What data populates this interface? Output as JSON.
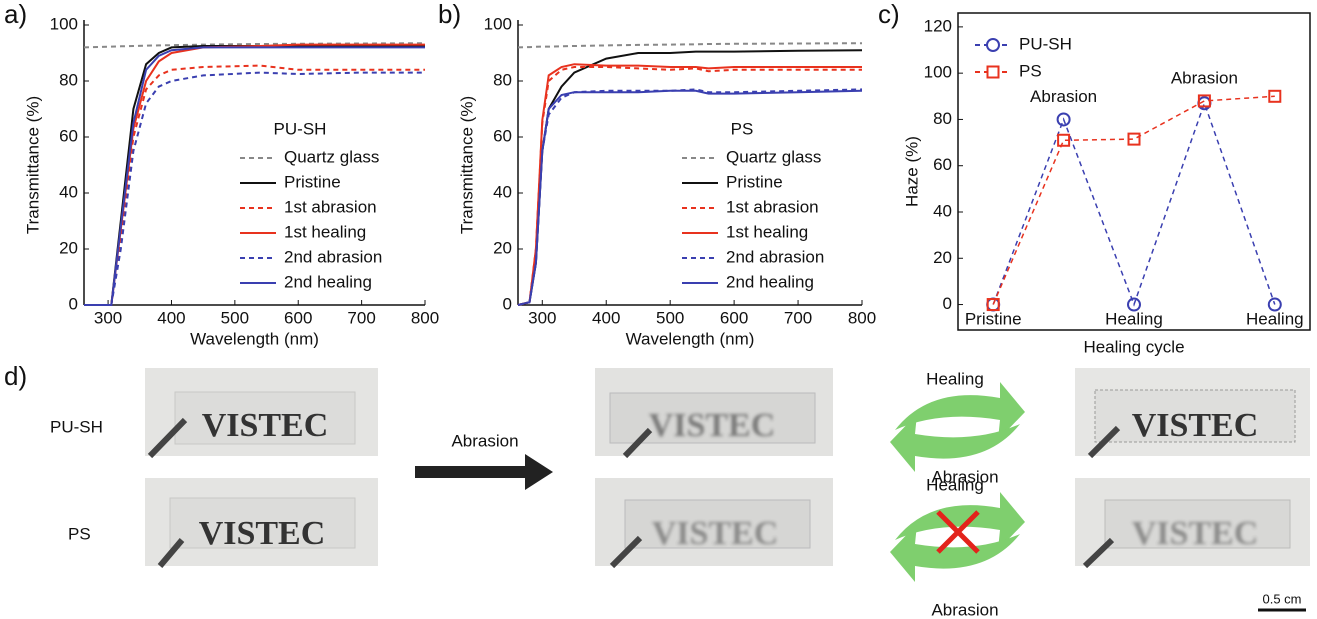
{
  "chart_data": [
    {
      "type": "line",
      "label": "a)",
      "xlabel": "Wavelength (nm)",
      "ylabel": "Transmittance (%)",
      "legend_title": "PU-SH",
      "xlim": [
        262,
        800
      ],
      "xticks": [
        300,
        400,
        500,
        600,
        700,
        800
      ],
      "ylim": [
        0,
        100
      ],
      "yticks": [
        0,
        20,
        40,
        60,
        80,
        100
      ],
      "x": [
        262,
        305,
        320,
        340,
        360,
        380,
        400,
        450,
        540,
        600,
        700,
        800
      ],
      "series": [
        {
          "name": "Quartz glass",
          "color": "#888888",
          "dashed": true,
          "values": [
            92,
            92.3,
            92.4,
            92.5,
            92.6,
            92.7,
            92.8,
            93,
            93.2,
            93.3,
            93.4,
            93.5
          ]
        },
        {
          "name": "Pristine",
          "color": "#111111",
          "dashed": false,
          "values": [
            0,
            0,
            30,
            70,
            86,
            90,
            92,
            92.5,
            92.5,
            92.5,
            92.5,
            92.5
          ]
        },
        {
          "name": "1st abrasion",
          "color": "#e8321e",
          "dashed": true,
          "values": [
            0,
            0,
            25,
            60,
            77,
            82,
            84,
            85,
            85.5,
            84,
            84,
            84
          ]
        },
        {
          "name": "1st healing",
          "color": "#e8321e",
          "dashed": false,
          "values": [
            0,
            0,
            27,
            63,
            80,
            87,
            90,
            92,
            92.5,
            93,
            93,
            93
          ]
        },
        {
          "name": "2nd abrasion",
          "color": "#3a3fb0",
          "dashed": true,
          "values": [
            0,
            0,
            20,
            55,
            72,
            78,
            80,
            82,
            83,
            82.5,
            83,
            83
          ]
        },
        {
          "name": "2nd healing",
          "color": "#3a3fb0",
          "dashed": false,
          "values": [
            0,
            0,
            28,
            65,
            84,
            89,
            91,
            92,
            92,
            92,
            92,
            92
          ]
        }
      ]
    },
    {
      "type": "line",
      "label": "b)",
      "xlabel": "Wavelength (nm)",
      "ylabel": "Transmittance (%)",
      "legend_title": "PS",
      "xlim": [
        262,
        800
      ],
      "xticks": [
        300,
        400,
        500,
        600,
        700,
        800
      ],
      "ylim": [
        0,
        100
      ],
      "yticks": [
        0,
        20,
        40,
        60,
        80,
        100
      ],
      "x": [
        262,
        280,
        290,
        300,
        310,
        330,
        350,
        400,
        450,
        500,
        540,
        560,
        600,
        700,
        800
      ],
      "series": [
        {
          "name": "Quartz glass",
          "color": "#888888",
          "dashed": true,
          "values": [
            92,
            92.1,
            92.2,
            92.3,
            92.3,
            92.4,
            92.5,
            92.7,
            92.9,
            93,
            93.1,
            93.2,
            93.3,
            93.4,
            93.5
          ]
        },
        {
          "name": "Pristine",
          "color": "#111111",
          "dashed": false,
          "values": [
            0,
            1,
            15,
            55,
            70,
            78,
            83,
            88,
            90,
            90,
            90.5,
            90.5,
            90.5,
            90.8,
            91
          ]
        },
        {
          "name": "1st abrasion",
          "color": "#e8321e",
          "dashed": true,
          "values": [
            0,
            1,
            20,
            65,
            80,
            84,
            85,
            85,
            84.5,
            84,
            84.5,
            83.5,
            84,
            84,
            84
          ]
        },
        {
          "name": "1st healing",
          "color": "#e8321e",
          "dashed": false,
          "values": [
            0,
            1,
            20,
            66,
            82,
            85,
            86,
            85.5,
            85.5,
            85,
            85,
            84.5,
            85,
            85,
            85
          ]
        },
        {
          "name": "2nd abrasion",
          "color": "#3a3fb0",
          "dashed": true,
          "values": [
            0,
            1,
            15,
            55,
            68,
            74,
            76,
            76.5,
            76.5,
            76.5,
            77,
            76,
            76,
            76.5,
            77
          ]
        },
        {
          "name": "2nd healing",
          "color": "#3a3fb0",
          "dashed": false,
          "values": [
            0,
            1,
            15,
            55,
            70,
            75,
            76,
            76,
            76,
            76.5,
            76.5,
            75.5,
            75.5,
            76,
            76.5
          ]
        }
      ]
    },
    {
      "type": "marker-line",
      "label": "c)",
      "xlabel": "Healing cycle",
      "ylabel": "Haze (%)",
      "categories": [
        "Pristine",
        null,
        "Healing",
        null,
        "Healing"
      ],
      "annotations": [
        "Abrasion",
        "Abrasion"
      ],
      "ylim": [
        -11,
        126
      ],
      "yticks": [
        0,
        20,
        40,
        60,
        80,
        100,
        120
      ],
      "series": [
        {
          "name": "PU-SH",
          "color": "#3a3fb0",
          "marker": "circle",
          "values": [
            0,
            80,
            0,
            87,
            0
          ]
        },
        {
          "name": "PS",
          "color": "#e8321e",
          "marker": "square",
          "values": [
            0,
            71,
            71.5,
            88,
            90
          ]
        }
      ]
    }
  ],
  "photos": {
    "label": "d)",
    "rows": [
      "PU-SH",
      "PS"
    ],
    "arrow_label": "Abrasion",
    "cycle": [
      "Healing",
      "Abrasion"
    ],
    "photo_text": "VISTEC",
    "scale_bar": "0.5 cm"
  }
}
